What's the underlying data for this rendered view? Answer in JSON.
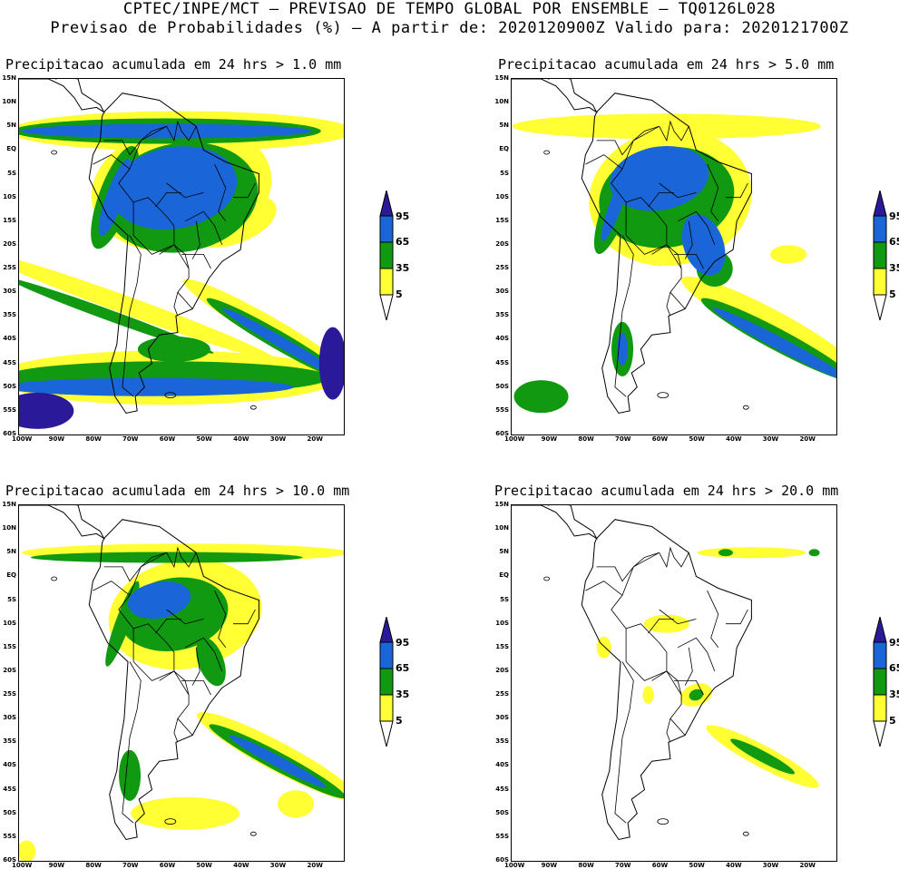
{
  "header": {
    "line1": "CPTEC/INPE/MCT – PREVISAO DE TEMPO GLOBAL POR ENSEMBLE – TQ0126L028",
    "line2": "Previsao de Probabilidades (%) –  A partir de: 2020120900Z  Valido para: 2020121700Z"
  },
  "panels": [
    {
      "title": "Precipitacao acumulada em 24 hrs > 1.0 mm",
      "level": 1
    },
    {
      "title": "Precipitacao acumulada em 24 hrs > 5.0 mm",
      "level": 2
    },
    {
      "title": "Precipitacao acumulada em 24 hrs > 10.0 mm",
      "level": 3
    },
    {
      "title": "Precipitacao acumulada em 24 hrs > 20.0 mm",
      "level": 4
    }
  ],
  "lat_labels": [
    "15N",
    "10N",
    "5N",
    "EQ",
    "5S",
    "10S",
    "15S",
    "20S",
    "25S",
    "30S",
    "35S",
    "40S",
    "45S",
    "50S",
    "55S",
    "60S"
  ],
  "lon_labels": [
    "100W",
    "90W",
    "80W",
    "70W",
    "60W",
    "50W",
    "40W",
    "30W",
    "20W"
  ],
  "colorbar": {
    "labels": [
      "95",
      "65",
      "35",
      "5"
    ],
    "colors": {
      "c5": "#ffff33",
      "c35": "#119911",
      "c65": "#1a66d9",
      "c95": "#2a1a99"
    }
  }
}
